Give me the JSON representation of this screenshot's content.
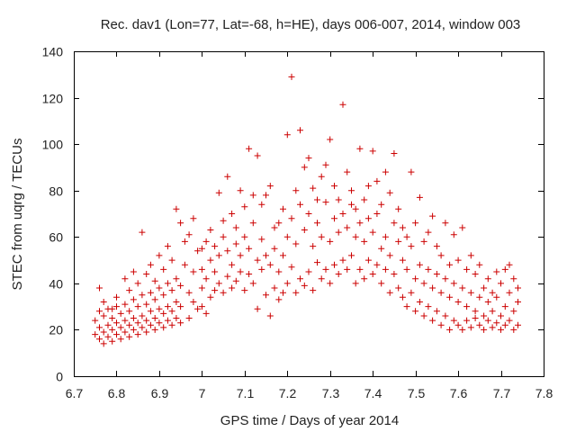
{
  "chart_data": {
    "type": "scatter",
    "title": "Rec. dav1 (Lon=77, Lat=-68, h=HE), days 006-007, 2014, window 003",
    "xlabel": "GPS time / Days of year 2014",
    "ylabel": "STEC from uqrg / TECUs",
    "xlim": [
      6.7,
      7.8
    ],
    "ylim": [
      0,
      140
    ],
    "x_ticks": [
      "6.7",
      "6.8",
      "6.9",
      "7",
      "7.1",
      "7.2",
      "7.3",
      "7.4",
      "7.5",
      "7.6",
      "7.7",
      "7.8"
    ],
    "y_ticks": [
      "0",
      "20",
      "40",
      "60",
      "80",
      "100",
      "120",
      "140"
    ],
    "grid": false,
    "legend": "none",
    "marker": "plus",
    "color": "#cc0000",
    "series": [
      {
        "points": [
          [
            6.75,
            18
          ],
          [
            6.75,
            24
          ],
          [
            6.76,
            16
          ],
          [
            6.76,
            21
          ],
          [
            6.76,
            28
          ],
          [
            6.77,
            14
          ],
          [
            6.77,
            19
          ],
          [
            6.77,
            26
          ],
          [
            6.78,
            17
          ],
          [
            6.78,
            22
          ],
          [
            6.78,
            29
          ],
          [
            6.79,
            15
          ],
          [
            6.79,
            20
          ],
          [
            6.79,
            25
          ],
          [
            6.8,
            18
          ],
          [
            6.8,
            23
          ],
          [
            6.8,
            30
          ],
          [
            6.81,
            16
          ],
          [
            6.81,
            21
          ],
          [
            6.81,
            27
          ],
          [
            6.82,
            19
          ],
          [
            6.82,
            24
          ],
          [
            6.82,
            31
          ],
          [
            6.83,
            17
          ],
          [
            6.83,
            22
          ],
          [
            6.83,
            28
          ],
          [
            6.84,
            20
          ],
          [
            6.84,
            25
          ],
          [
            6.84,
            33
          ],
          [
            6.85,
            18
          ],
          [
            6.85,
            23
          ],
          [
            6.85,
            30
          ],
          [
            6.86,
            21
          ],
          [
            6.86,
            26
          ],
          [
            6.86,
            35
          ],
          [
            6.87,
            19
          ],
          [
            6.87,
            24
          ],
          [
            6.87,
            31
          ],
          [
            6.88,
            22
          ],
          [
            6.88,
            28
          ],
          [
            6.88,
            36
          ],
          [
            6.89,
            20
          ],
          [
            6.89,
            25
          ],
          [
            6.89,
            33
          ],
          [
            6.9,
            23
          ],
          [
            6.9,
            29
          ],
          [
            6.9,
            38
          ],
          [
            6.91,
            21
          ],
          [
            6.91,
            27
          ],
          [
            6.91,
            35
          ],
          [
            6.92,
            24
          ],
          [
            6.92,
            30
          ],
          [
            6.92,
            40
          ],
          [
            6.93,
            22
          ],
          [
            6.93,
            28
          ],
          [
            6.93,
            37
          ],
          [
            6.94,
            25
          ],
          [
            6.94,
            32
          ],
          [
            6.94,
            42
          ],
          [
            6.95,
            23
          ],
          [
            6.95,
            30
          ],
          [
            6.95,
            39
          ],
          [
            6.76,
            38
          ],
          [
            6.77,
            32
          ],
          [
            6.79,
            29
          ],
          [
            6.8,
            34
          ],
          [
            6.82,
            42
          ],
          [
            6.83,
            37
          ],
          [
            6.84,
            45
          ],
          [
            6.85,
            40
          ],
          [
            6.86,
            62
          ],
          [
            6.87,
            44
          ],
          [
            6.88,
            48
          ],
          [
            6.89,
            41
          ],
          [
            6.9,
            52
          ],
          [
            6.91,
            46
          ],
          [
            6.92,
            56
          ],
          [
            6.93,
            50
          ],
          [
            6.94,
            72
          ],
          [
            6.95,
            66
          ],
          [
            6.96,
            58
          ],
          [
            6.97,
            61
          ],
          [
            6.98,
            68
          ],
          [
            6.96,
            48
          ],
          [
            6.97,
            36
          ],
          [
            6.98,
            45
          ],
          [
            6.99,
            54
          ],
          [
            6.99,
            29
          ],
          [
            6.97,
            25
          ],
          [
            6.98,
            32
          ],
          [
            7,
            30
          ],
          [
            7,
            38
          ],
          [
            7,
            46
          ],
          [
            7,
            55
          ],
          [
            7.01,
            27
          ],
          [
            7.01,
            42
          ],
          [
            7.01,
            58
          ],
          [
            7.02,
            34
          ],
          [
            7.02,
            50
          ],
          [
            7.02,
            63
          ],
          [
            7.03,
            37
          ],
          [
            7.03,
            45
          ],
          [
            7.03,
            56
          ],
          [
            7.04,
            40
          ],
          [
            7.04,
            52
          ],
          [
            7.04,
            79
          ],
          [
            7.05,
            36
          ],
          [
            7.05,
            60
          ],
          [
            7.05,
            67
          ],
          [
            7.06,
            43
          ],
          [
            7.06,
            54
          ],
          [
            7.06,
            86
          ],
          [
            7.07,
            38
          ],
          [
            7.07,
            48
          ],
          [
            7.07,
            70
          ],
          [
            7.08,
            41
          ],
          [
            7.08,
            57
          ],
          [
            7.08,
            64
          ],
          [
            7.09,
            45
          ],
          [
            7.09,
            52
          ],
          [
            7.09,
            80
          ],
          [
            7.1,
            37
          ],
          [
            7.1,
            60
          ],
          [
            7.1,
            73
          ],
          [
            7.11,
            44
          ],
          [
            7.11,
            55
          ],
          [
            7.11,
            98
          ],
          [
            7.12,
            40
          ],
          [
            7.12,
            66
          ],
          [
            7.12,
            78
          ],
          [
            7.13,
            29
          ],
          [
            7.13,
            50
          ],
          [
            7.13,
            95
          ],
          [
            7.14,
            46
          ],
          [
            7.14,
            59
          ],
          [
            7.14,
            74
          ],
          [
            7.15,
            35
          ],
          [
            7.15,
            52
          ],
          [
            7.15,
            78
          ],
          [
            7.16,
            26
          ],
          [
            7.16,
            48
          ],
          [
            7.16,
            82
          ],
          [
            7.17,
            38
          ],
          [
            7.17,
            55
          ],
          [
            7.17,
            64
          ],
          [
            7.18,
            33
          ],
          [
            7.18,
            45
          ],
          [
            7.18,
            66
          ],
          [
            7.19,
            36
          ],
          [
            7.19,
            52
          ],
          [
            7.19,
            72
          ],
          [
            7.2,
            40
          ],
          [
            7.2,
            60
          ],
          [
            7.2,
            104
          ],
          [
            7.21,
            129
          ],
          [
            7.21,
            47
          ],
          [
            7.21,
            68
          ],
          [
            7.22,
            36
          ],
          [
            7.22,
            57
          ],
          [
            7.22,
            80
          ],
          [
            7.23,
            42
          ],
          [
            7.23,
            74
          ],
          [
            7.23,
            106
          ],
          [
            7.24,
            39
          ],
          [
            7.24,
            63
          ],
          [
            7.24,
            90
          ],
          [
            7.25,
            45
          ],
          [
            7.25,
            70
          ],
          [
            7.25,
            94
          ],
          [
            7.26,
            37
          ],
          [
            7.26,
            56
          ],
          [
            7.26,
            81
          ],
          [
            7.27,
            49
          ],
          [
            7.27,
            66
          ],
          [
            7.27,
            76
          ],
          [
            7.28,
            42
          ],
          [
            7.28,
            60
          ],
          [
            7.28,
            86
          ],
          [
            7.29,
            46
          ],
          [
            7.29,
            75
          ],
          [
            7.29,
            91
          ],
          [
            7.3,
            40
          ],
          [
            7.3,
            58
          ],
          [
            7.3,
            102
          ],
          [
            7.31,
            48
          ],
          [
            7.31,
            68
          ],
          [
            7.31,
            82
          ],
          [
            7.32,
            44
          ],
          [
            7.32,
            62
          ],
          [
            7.32,
            76
          ],
          [
            7.33,
            50
          ],
          [
            7.33,
            70
          ],
          [
            7.33,
            117
          ],
          [
            7.34,
            46
          ],
          [
            7.34,
            64
          ],
          [
            7.34,
            88
          ],
          [
            7.35,
            52
          ],
          [
            7.35,
            74
          ],
          [
            7.35,
            80
          ],
          [
            7.36,
            40
          ],
          [
            7.36,
            60
          ],
          [
            7.36,
            72
          ],
          [
            7.37,
            46
          ],
          [
            7.37,
            66
          ],
          [
            7.37,
            98
          ],
          [
            7.38,
            42
          ],
          [
            7.38,
            58
          ],
          [
            7.38,
            76
          ],
          [
            7.39,
            50
          ],
          [
            7.39,
            68
          ],
          [
            7.39,
            82
          ],
          [
            7.4,
            44
          ],
          [
            7.4,
            62
          ],
          [
            7.4,
            97
          ],
          [
            7.41,
            48
          ],
          [
            7.41,
            70
          ],
          [
            7.41,
            84
          ],
          [
            7.42,
            40
          ],
          [
            7.42,
            55
          ],
          [
            7.42,
            74
          ],
          [
            7.43,
            46
          ],
          [
            7.43,
            60
          ],
          [
            7.43,
            88
          ],
          [
            7.44,
            36
          ],
          [
            7.44,
            52
          ],
          [
            7.44,
            79
          ],
          [
            7.45,
            44
          ],
          [
            7.45,
            66
          ],
          [
            7.45,
            96
          ],
          [
            7.46,
            38
          ],
          [
            7.46,
            58
          ],
          [
            7.46,
            72
          ],
          [
            7.47,
            34
          ],
          [
            7.47,
            50
          ],
          [
            7.47,
            64
          ],
          [
            7.48,
            30
          ],
          [
            7.48,
            46
          ],
          [
            7.48,
            60
          ],
          [
            7.49,
            36
          ],
          [
            7.49,
            56
          ],
          [
            7.49,
            88
          ],
          [
            7.5,
            28
          ],
          [
            7.5,
            42
          ],
          [
            7.5,
            66
          ],
          [
            7.51,
            32
          ],
          [
            7.51,
            48
          ],
          [
            7.51,
            77
          ],
          [
            7.52,
            26
          ],
          [
            7.52,
            40
          ],
          [
            7.52,
            58
          ],
          [
            7.53,
            30
          ],
          [
            7.53,
            46
          ],
          [
            7.53,
            62
          ],
          [
            7.54,
            24
          ],
          [
            7.54,
            38
          ],
          [
            7.54,
            69
          ],
          [
            7.55,
            28
          ],
          [
            7.55,
            44
          ],
          [
            7.55,
            56
          ],
          [
            7.56,
            22
          ],
          [
            7.56,
            36
          ],
          [
            7.56,
            52
          ],
          [
            7.57,
            26
          ],
          [
            7.57,
            42
          ],
          [
            7.57,
            66
          ],
          [
            7.58,
            20
          ],
          [
            7.58,
            34
          ],
          [
            7.58,
            48
          ],
          [
            7.59,
            24
          ],
          [
            7.59,
            40
          ],
          [
            7.59,
            61
          ],
          [
            7.6,
            22
          ],
          [
            7.6,
            32
          ],
          [
            7.6,
            50
          ],
          [
            7.61,
            20
          ],
          [
            7.61,
            38
          ],
          [
            7.61,
            64
          ],
          [
            7.62,
            24
          ],
          [
            7.62,
            30
          ],
          [
            7.62,
            46
          ],
          [
            7.63,
            21
          ],
          [
            7.63,
            36
          ],
          [
            7.63,
            52
          ],
          [
            7.64,
            25
          ],
          [
            7.64,
            28
          ],
          [
            7.64,
            44
          ],
          [
            7.65,
            22
          ],
          [
            7.65,
            34
          ],
          [
            7.65,
            48
          ],
          [
            7.66,
            20
          ],
          [
            7.66,
            26
          ],
          [
            7.66,
            38
          ],
          [
            7.67,
            24
          ],
          [
            7.67,
            32
          ],
          [
            7.67,
            42
          ],
          [
            7.68,
            21
          ],
          [
            7.68,
            28
          ],
          [
            7.68,
            36
          ],
          [
            7.69,
            23
          ],
          [
            7.69,
            34
          ],
          [
            7.69,
            45
          ],
          [
            7.7,
            20
          ],
          [
            7.7,
            26
          ],
          [
            7.7,
            40
          ],
          [
            7.71,
            22
          ],
          [
            7.71,
            30
          ],
          [
            7.71,
            46
          ],
          [
            7.72,
            24
          ],
          [
            7.72,
            36
          ],
          [
            7.72,
            48
          ],
          [
            7.73,
            20
          ],
          [
            7.73,
            28
          ],
          [
            7.73,
            42
          ],
          [
            7.74,
            22
          ],
          [
            7.74,
            32
          ],
          [
            7.74,
            38
          ]
        ]
      }
    ]
  }
}
